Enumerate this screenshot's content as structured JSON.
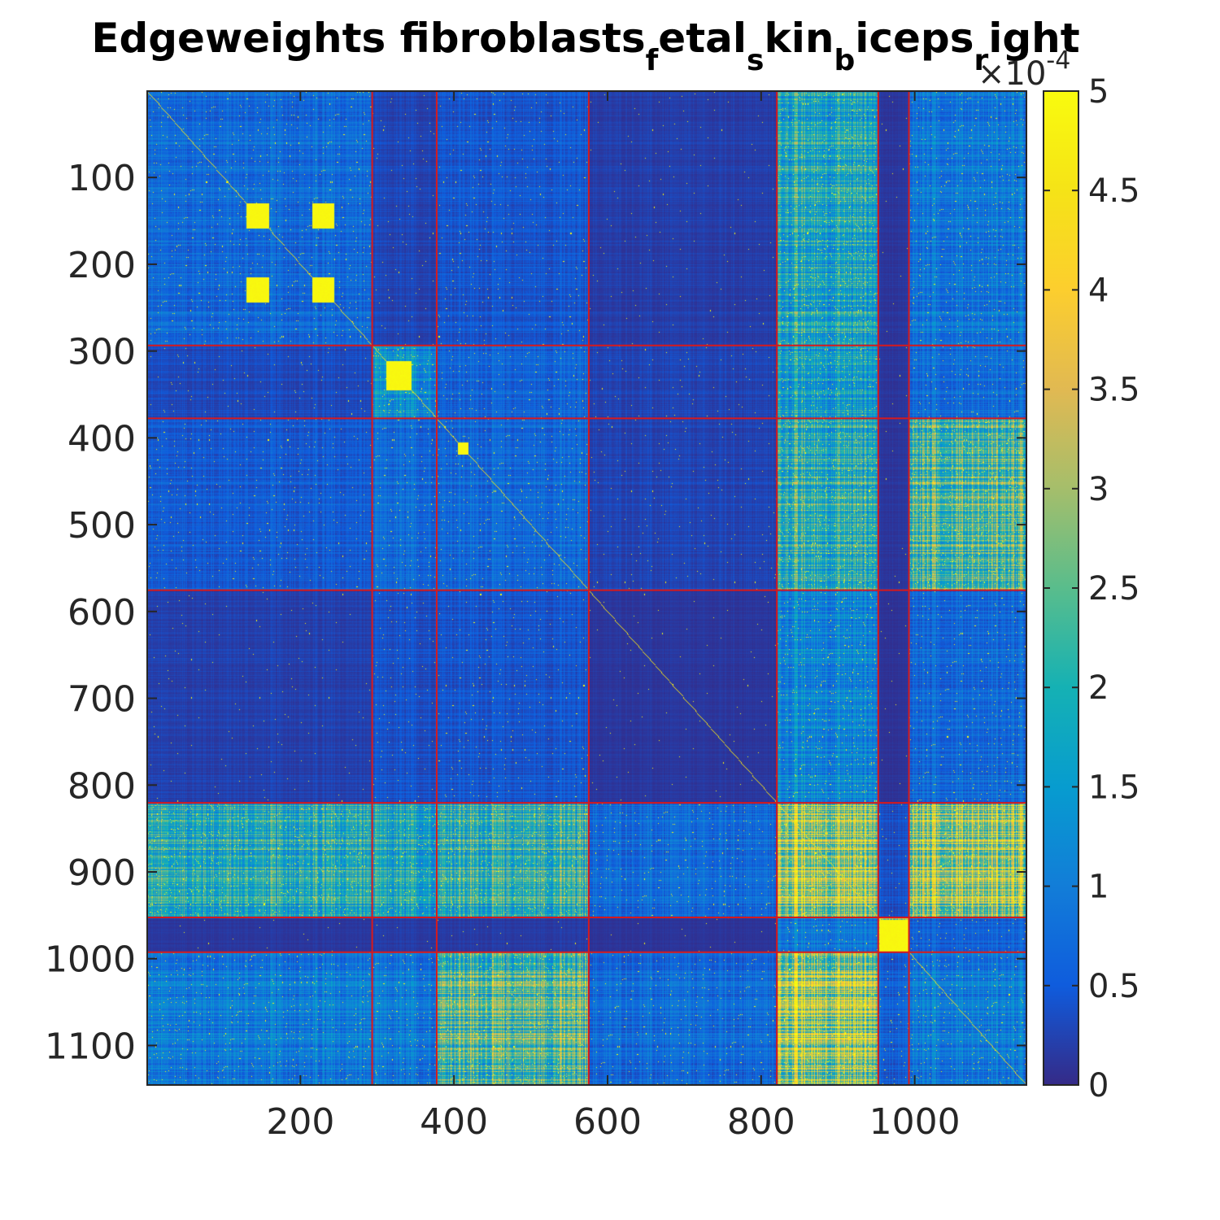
{
  "chart_data": {
    "type": "heatmap",
    "title_parts": [
      {
        "text": "Edgeweights fibroblasts",
        "sub": false
      },
      {
        "text": "f",
        "sub": true
      },
      {
        "text": "etal",
        "sub": false
      },
      {
        "text": "s",
        "sub": true
      },
      {
        "text": "kin",
        "sub": false
      },
      {
        "text": "b",
        "sub": true
      },
      {
        "text": "iceps",
        "sub": false
      },
      {
        "text": "r",
        "sub": true
      },
      {
        "text": "ight",
        "sub": false
      }
    ],
    "n": 1145,
    "xlim": [
      1,
      1145
    ],
    "ylim": [
      1,
      1145
    ],
    "x_ticks": [
      200,
      400,
      600,
      800,
      1000
    ],
    "x_tick_labels": [
      "200",
      "400",
      "600",
      "800",
      "1000"
    ],
    "y_ticks": [
      100,
      200,
      300,
      400,
      500,
      600,
      700,
      800,
      900,
      1000,
      1100
    ],
    "y_tick_labels": [
      "100",
      "200",
      "300",
      "400",
      "500",
      "600",
      "700",
      "800",
      "900",
      "1000",
      "1100"
    ],
    "cluster_boundaries": [
      293,
      377,
      575,
      820,
      952,
      992
    ],
    "block_intensity": [
      [
        0.22,
        0.08,
        0.14,
        0.06,
        0.55,
        0.04,
        0.28
      ],
      [
        0.1,
        0.4,
        0.2,
        0.08,
        0.5,
        0.04,
        0.24
      ],
      [
        0.16,
        0.22,
        0.22,
        0.08,
        0.62,
        0.04,
        0.72
      ],
      [
        0.07,
        0.12,
        0.14,
        0.04,
        0.36,
        0.03,
        0.22
      ],
      [
        0.58,
        0.52,
        0.62,
        0.22,
        0.95,
        0.12,
        0.92
      ],
      [
        0.04,
        0.05,
        0.05,
        0.03,
        0.28,
        0.98,
        0.18
      ],
      [
        0.3,
        0.28,
        0.72,
        0.22,
        0.96,
        0.18,
        0.3
      ]
    ],
    "hot_blocks": [
      {
        "r": [
          130,
          158
        ],
        "c": [
          130,
          158
        ]
      },
      {
        "r": [
          130,
          158
        ],
        "c": [
          215,
          243
        ]
      },
      {
        "r": [
          215,
          243
        ],
        "c": [
          130,
          158
        ]
      },
      {
        "r": [
          215,
          243
        ],
        "c": [
          215,
          243
        ]
      },
      {
        "r": [
          312,
          344
        ],
        "c": [
          312,
          344
        ]
      },
      {
        "r": [
          405,
          418
        ],
        "c": [
          405,
          418
        ]
      },
      {
        "r": [
          955,
          991
        ],
        "c": [
          955,
          991
        ]
      }
    ],
    "colorbar": {
      "min": 0,
      "max": 5,
      "ticks": [
        0,
        0.5,
        1,
        1.5,
        2,
        2.5,
        3,
        3.5,
        4,
        4.5,
        5
      ],
      "tick_labels": [
        "0",
        "0.5",
        "1",
        "1.5",
        "2",
        "2.5",
        "3",
        "3.5",
        "4",
        "4.5",
        "5"
      ],
      "colormap": "parula",
      "multiplier_prefix": "×10",
      "multiplier_exponent": "-4"
    },
    "boundary_color": "#d7191c",
    "grid": false,
    "legend": "none"
  }
}
